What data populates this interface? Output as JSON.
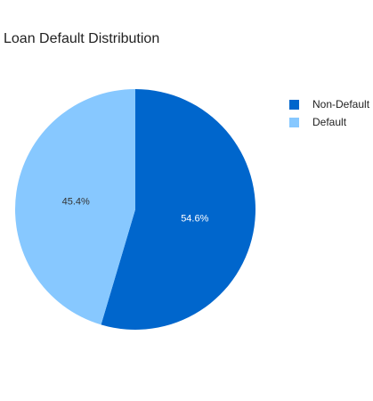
{
  "chart_data": {
    "type": "pie",
    "title": "Loan Default Distribution",
    "slices": [
      {
        "label": "Non-Default",
        "value": 54.6,
        "display": "54.6%",
        "color": "#0066cc",
        "text_color": "#ffffff"
      },
      {
        "label": "Default",
        "value": 45.4,
        "display": "45.4%",
        "color": "#87c8ff",
        "text_color": "#333333"
      }
    ],
    "legend_position": "right"
  }
}
